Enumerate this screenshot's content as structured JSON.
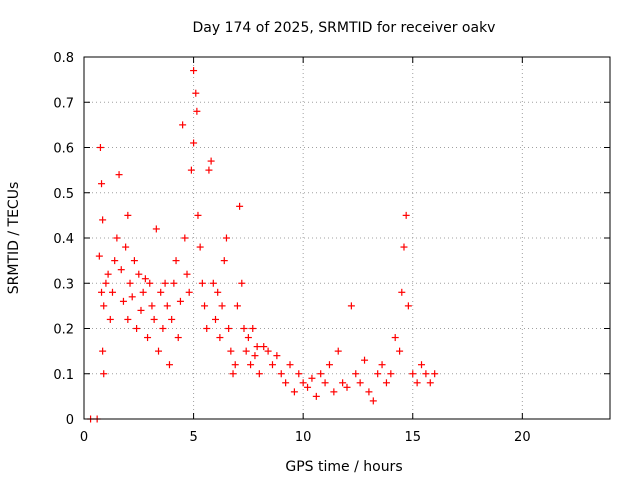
{
  "chart_data": {
    "type": "scatter",
    "title": "Day 174 of 2025, SRMTID for receiver oakv",
    "xlabel": "GPS time / hours",
    "ylabel": "SRMTID / TECUs",
    "xlim": [
      0,
      24
    ],
    "ylim": [
      0,
      0.8
    ],
    "x_ticks": [
      0,
      5,
      10,
      15,
      20
    ],
    "x_tick_labels": [
      "0",
      "5",
      "10",
      "15",
      "20"
    ],
    "y_ticks": [
      0,
      0.1,
      0.2,
      0.3,
      0.4,
      0.5,
      0.6,
      0.7,
      0.8
    ],
    "y_tick_labels": [
      "0",
      "0.1",
      "0.2",
      "0.3",
      "0.4",
      "0.5",
      "0.6",
      "0.7",
      "0.8"
    ],
    "grid": true,
    "marker": "+",
    "marker_color": "#ff0000",
    "series": [
      {
        "name": "SRMTID",
        "x": [
          0.3,
          0.6,
          0.7,
          0.75,
          0.8,
          0.8,
          0.85,
          0.85,
          0.9,
          0.9,
          1.0,
          1.1,
          1.2,
          1.3,
          1.4,
          1.5,
          1.6,
          1.7,
          1.8,
          1.9,
          2.0,
          2.0,
          2.1,
          2.2,
          2.3,
          2.4,
          2.5,
          2.6,
          2.7,
          2.8,
          2.9,
          3.0,
          3.1,
          3.2,
          3.3,
          3.4,
          3.5,
          3.6,
          3.7,
          3.8,
          3.9,
          4.0,
          4.1,
          4.2,
          4.3,
          4.4,
          4.5,
          4.6,
          4.7,
          4.8,
          4.9,
          5.0,
          5.0,
          5.1,
          5.15,
          5.2,
          5.3,
          5.4,
          5.5,
          5.6,
          5.7,
          5.8,
          5.9,
          6.0,
          6.1,
          6.2,
          6.3,
          6.4,
          6.5,
          6.6,
          6.7,
          6.8,
          6.9,
          7.0,
          7.1,
          7.2,
          7.3,
          7.4,
          7.5,
          7.6,
          7.7,
          7.8,
          7.9,
          8.0,
          8.2,
          8.4,
          8.6,
          8.8,
          9.0,
          9.2,
          9.4,
          9.6,
          9.8,
          10.0,
          10.2,
          10.4,
          10.6,
          10.8,
          11.0,
          11.2,
          11.4,
          11.6,
          11.8,
          12.0,
          12.2,
          12.4,
          12.6,
          12.8,
          13.0,
          13.2,
          13.4,
          13.6,
          13.8,
          14.0,
          14.2,
          14.4,
          14.5,
          14.6,
          14.7,
          14.8,
          15.0,
          15.2,
          15.4,
          15.6,
          15.8,
          16.0
        ],
        "y": [
          0.0,
          0.0,
          0.36,
          0.6,
          0.52,
          0.28,
          0.15,
          0.44,
          0.25,
          0.1,
          0.3,
          0.32,
          0.22,
          0.28,
          0.35,
          0.4,
          0.54,
          0.33,
          0.26,
          0.38,
          0.45,
          0.22,
          0.3,
          0.27,
          0.35,
          0.2,
          0.32,
          0.24,
          0.28,
          0.31,
          0.18,
          0.3,
          0.25,
          0.22,
          0.42,
          0.15,
          0.28,
          0.2,
          0.3,
          0.25,
          0.12,
          0.22,
          0.3,
          0.35,
          0.18,
          0.26,
          0.65,
          0.4,
          0.32,
          0.28,
          0.55,
          0.61,
          0.77,
          0.72,
          0.68,
          0.45,
          0.38,
          0.3,
          0.25,
          0.2,
          0.55,
          0.57,
          0.3,
          0.22,
          0.28,
          0.18,
          0.25,
          0.35,
          0.4,
          0.2,
          0.15,
          0.1,
          0.12,
          0.25,
          0.47,
          0.3,
          0.2,
          0.15,
          0.18,
          0.12,
          0.2,
          0.14,
          0.16,
          0.1,
          0.16,
          0.15,
          0.12,
          0.14,
          0.1,
          0.08,
          0.12,
          0.06,
          0.1,
          0.08,
          0.07,
          0.09,
          0.05,
          0.1,
          0.08,
          0.12,
          0.06,
          0.15,
          0.08,
          0.07,
          0.25,
          0.1,
          0.08,
          0.13,
          0.06,
          0.04,
          0.1,
          0.12,
          0.08,
          0.1,
          0.18,
          0.15,
          0.28,
          0.38,
          0.45,
          0.25,
          0.1,
          0.08,
          0.12,
          0.1,
          0.08,
          0.1
        ]
      }
    ]
  }
}
